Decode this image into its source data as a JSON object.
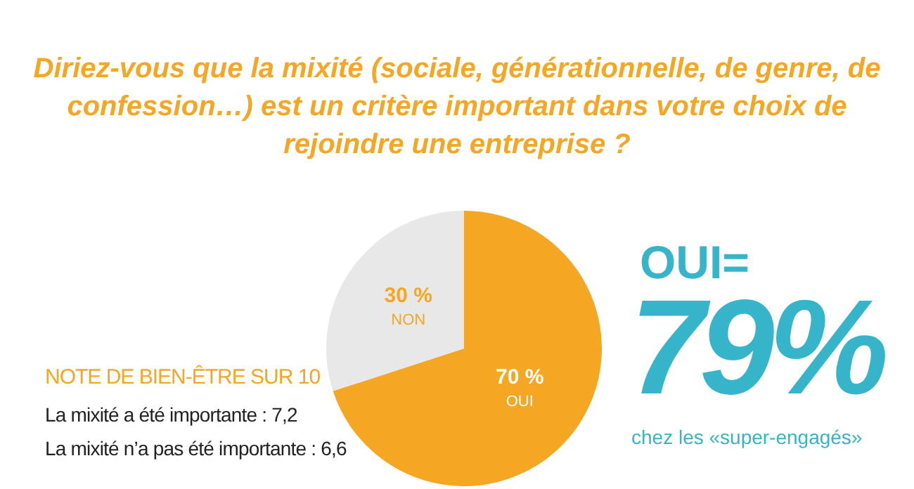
{
  "chart_data": {
    "type": "pie",
    "title": "Diriez-vous que la mixité (sociale, générationnelle, de genre, de confession…) est un critère important dans votre choix de rejoindre une entreprise ?",
    "categories": [
      "OUI",
      "NON"
    ],
    "values": [
      70,
      30
    ],
    "colors": [
      "#f5a623",
      "#e8e8e8"
    ],
    "value_labels": [
      "70 %",
      "30 %"
    ],
    "legend": false,
    "annotations": [
      "NOTE DE BIEN-ÊTRE SUR 10",
      "La mixité a été importante : 7,2",
      "La mixité n’a pas été importante : 6,6",
      "OUI=",
      "79%",
      "chez les «super-engagés»"
    ]
  }
}
